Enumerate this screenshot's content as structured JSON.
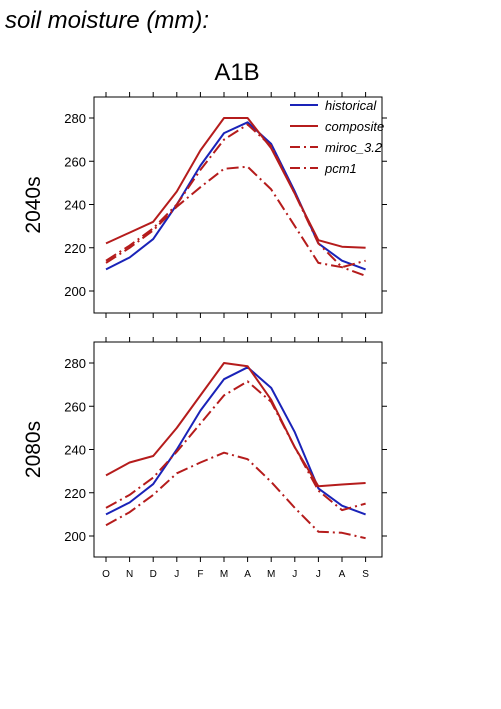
{
  "figure": {
    "title": "soil moisture (mm):",
    "scenario": "A1B"
  },
  "colors": {
    "historical": "#1a23b8",
    "composite": "#b51c1c",
    "miroc_3.2": "#b51c1c",
    "pcm1": "#b51c1c"
  },
  "chart_data": [
    {
      "type": "line",
      "row_label": "2040s",
      "categories": [
        "O",
        "N",
        "D",
        "J",
        "F",
        "M",
        "A",
        "M",
        "J",
        "J",
        "A",
        "S"
      ],
      "ylim": [
        190,
        290
      ],
      "yticks": [
        200,
        220,
        240,
        260,
        280
      ],
      "legend": {
        "placement": "top-right"
      },
      "series": [
        {
          "name": "historical",
          "style": "solid",
          "color": "#1a23b8",
          "values": [
            210,
            215.5,
            224,
            240,
            258,
            273,
            278,
            268,
            246,
            222,
            214,
            210
          ]
        },
        {
          "name": "composite",
          "style": "solid",
          "color": "#b51c1c",
          "values": [
            222,
            227,
            232,
            246,
            265,
            280,
            280,
            266,
            245,
            223.5,
            220.5,
            220
          ]
        },
        {
          "name": "miroc_3.2",
          "style": "dashdot",
          "color": "#b51c1c",
          "values": [
            214,
            221,
            229,
            240,
            256,
            270,
            277,
            267,
            245,
            222,
            211,
            214
          ]
        },
        {
          "name": "pcm1",
          "style": "dashdot",
          "color": "#b51c1c",
          "values": [
            213,
            220,
            228,
            239,
            248,
            256.5,
            257.5,
            247,
            230,
            213,
            211,
            207
          ]
        }
      ]
    },
    {
      "type": "line",
      "row_label": "2080s",
      "categories": [
        "O",
        "N",
        "D",
        "J",
        "F",
        "M",
        "A",
        "M",
        "J",
        "J",
        "A",
        "S"
      ],
      "ylim": [
        190,
        290
      ],
      "yticks": [
        200,
        220,
        240,
        260,
        280
      ],
      "series": [
        {
          "name": "historical",
          "style": "solid",
          "color": "#1a23b8",
          "values": [
            210,
            215.5,
            224,
            240,
            258,
            272.5,
            278,
            268.5,
            248,
            222,
            214,
            210
          ]
        },
        {
          "name": "composite",
          "style": "solid",
          "color": "#b51c1c",
          "values": [
            228,
            234,
            237,
            250,
            265,
            280,
            278.5,
            263,
            241,
            223,
            223.8,
            224.5
          ]
        },
        {
          "name": "miroc_3.2",
          "style": "dashdot",
          "color": "#b51c1c",
          "values": [
            213,
            219,
            227,
            239,
            252,
            265,
            271.5,
            262,
            241,
            221,
            212,
            215
          ]
        },
        {
          "name": "pcm1",
          "style": "dashdot",
          "color": "#b51c1c",
          "values": [
            205,
            211,
            219,
            229,
            234,
            238.5,
            235.5,
            225,
            213,
            202,
            201.5,
            199
          ]
        }
      ]
    }
  ]
}
